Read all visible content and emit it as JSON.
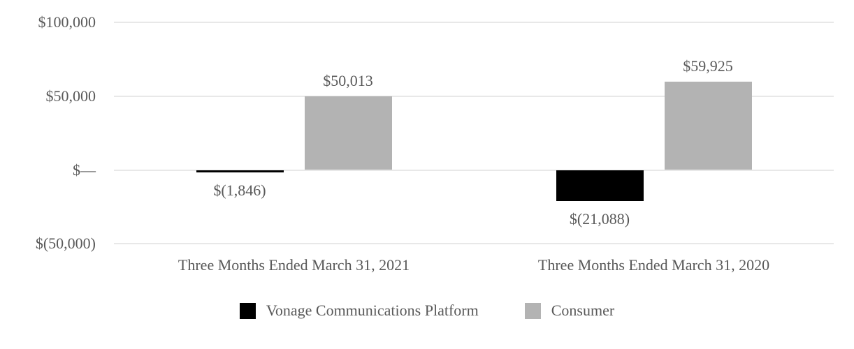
{
  "chart_data": {
    "type": "bar",
    "title": "",
    "categories": [
      "Three Months Ended March 31, 2021",
      "Three Months Ended March 31, 2020"
    ],
    "series": [
      {
        "name": "Vonage Communications Platform",
        "color": "#000000",
        "values": [
          -1846,
          -21088
        ],
        "data_labels": [
          "$(1,846)",
          "$(21,088)"
        ]
      },
      {
        "name": "Consumer",
        "color": "#b3b3b3",
        "values": [
          50013,
          59925
        ],
        "data_labels": [
          "$50,013",
          "$59,925"
        ]
      }
    ],
    "y_axis": {
      "ticks": [
        {
          "value": 100000,
          "label": "$100,000"
        },
        {
          "value": 50000,
          "label": "$50,000"
        },
        {
          "value": 0,
          "label": "$—"
        },
        {
          "value": -50000,
          "label": "$(50,000)"
        }
      ],
      "range": [
        -50000,
        100000
      ]
    },
    "grid": true,
    "legend_position": "bottom",
    "text_color": "#595959",
    "gridline_color": "#e8e8e8",
    "background_color": "#ffffff"
  }
}
